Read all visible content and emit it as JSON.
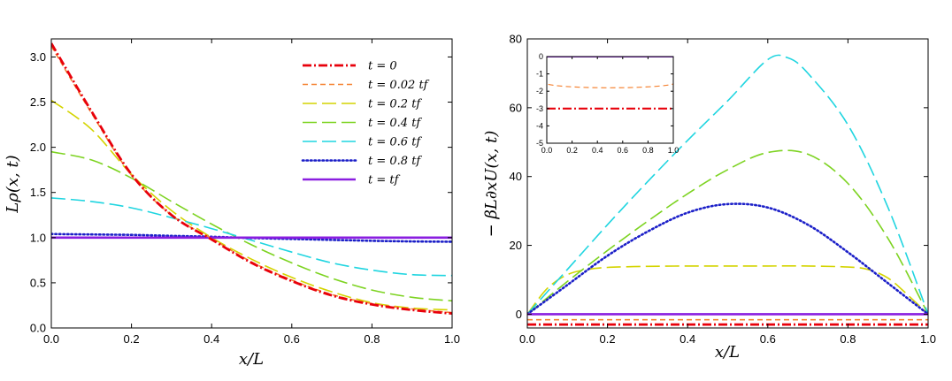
{
  "chart_data": [
    {
      "type": "line",
      "xlabel": "x/L",
      "ylabel": "Lρ(x, t)",
      "xlim": [
        0,
        1.0
      ],
      "ylim": [
        0,
        3.2
      ],
      "xticks": [
        "0.0",
        "0.2",
        "0.4",
        "0.6",
        "0.8",
        "1.0"
      ],
      "yticks": [
        "0.0",
        "0.5",
        "1.0",
        "1.5",
        "2.0",
        "2.5",
        "3.0"
      ],
      "legend_position": "top-right",
      "series": [
        {
          "name": "t = 0",
          "color": "#e8000b",
          "dash": "dashdot",
          "x": [
            0,
            0.1,
            0.2,
            0.3,
            0.4,
            0.5,
            0.6,
            0.7,
            0.8,
            0.9,
            1.0
          ],
          "y": [
            3.15,
            2.4,
            1.7,
            1.25,
            0.98,
            0.72,
            0.52,
            0.36,
            0.26,
            0.2,
            0.16
          ]
        },
        {
          "name": "t = 0.02 tf",
          "color": "#f58231",
          "dash": "dashed",
          "x": [
            0,
            0.1,
            0.2,
            0.3,
            0.4,
            0.5,
            0.6,
            0.7,
            0.8,
            0.9,
            1.0
          ],
          "y": [
            3.12,
            2.38,
            1.69,
            1.25,
            0.99,
            0.73,
            0.53,
            0.37,
            0.27,
            0.21,
            0.17
          ]
        },
        {
          "name": "t = 0.2 tf",
          "color": "#d4d400",
          "dash": "longdash",
          "x": [
            0,
            0.1,
            0.2,
            0.3,
            0.4,
            0.5,
            0.6,
            0.7,
            0.8,
            0.9,
            1.0
          ],
          "y": [
            2.52,
            2.2,
            1.7,
            1.3,
            1.0,
            0.76,
            0.56,
            0.4,
            0.28,
            0.22,
            0.2
          ]
        },
        {
          "name": "t = 0.4 tf",
          "color": "#7dd321",
          "dash": "longdash",
          "x": [
            0,
            0.1,
            0.2,
            0.3,
            0.4,
            0.5,
            0.6,
            0.7,
            0.8,
            0.9,
            1.0
          ],
          "y": [
            1.95,
            1.86,
            1.66,
            1.4,
            1.15,
            0.92,
            0.72,
            0.55,
            0.42,
            0.34,
            0.3
          ]
        },
        {
          "name": "t = 0.6 tf",
          "color": "#1fd5e0",
          "dash": "longdash",
          "x": [
            0,
            0.1,
            0.2,
            0.3,
            0.4,
            0.5,
            0.6,
            0.7,
            0.8,
            0.9,
            1.0
          ],
          "y": [
            1.44,
            1.4,
            1.33,
            1.22,
            1.1,
            0.97,
            0.84,
            0.72,
            0.64,
            0.59,
            0.58
          ]
        },
        {
          "name": "t = 0.8 tf",
          "color": "#1b1fc8",
          "dash": "dotted",
          "x": [
            0,
            0.1,
            0.2,
            0.3,
            0.4,
            0.5,
            0.6,
            0.7,
            0.8,
            0.9,
            1.0
          ],
          "y": [
            1.04,
            1.035,
            1.03,
            1.02,
            1.01,
            0.995,
            0.985,
            0.975,
            0.965,
            0.958,
            0.955
          ]
        },
        {
          "name": "t = tf",
          "color": "#8a1ee0",
          "dash": "solid",
          "x": [
            0,
            1.0
          ],
          "y": [
            1.0,
            1.0
          ]
        }
      ]
    },
    {
      "type": "line",
      "xlabel": "x/L",
      "ylabel": "− βL∂xU(x, t)",
      "xlim": [
        0,
        1.0
      ],
      "ylim": [
        -4,
        80
      ],
      "xticks": [
        "0.0",
        "0.2",
        "0.4",
        "0.6",
        "0.8",
        "1.0"
      ],
      "yticks": [
        "0",
        "20",
        "40",
        "60",
        "80"
      ],
      "series": [
        {
          "name": "t = 0",
          "color": "#e8000b",
          "dash": "dashdot",
          "x": [
            0,
            1.0
          ],
          "y": [
            -3.0,
            -3.0
          ]
        },
        {
          "name": "t = 0.02 tf",
          "color": "#f58231",
          "dash": "dashed",
          "x": [
            0,
            1.0
          ],
          "y": [
            -1.6,
            -1.6
          ]
        },
        {
          "name": "t = 0.2 tf",
          "color": "#d4d400",
          "dash": "longdash",
          "x": [
            0,
            0.05,
            0.1,
            0.15,
            0.2,
            0.3,
            0.4,
            0.5,
            0.6,
            0.7,
            0.8,
            0.85,
            0.9,
            0.95,
            1.0
          ],
          "y": [
            0,
            7.5,
            11.5,
            13.0,
            13.6,
            13.9,
            14.0,
            14.0,
            14.0,
            14.0,
            13.7,
            13.0,
            10.5,
            5.5,
            0
          ]
        },
        {
          "name": "t = 0.4 tf",
          "color": "#7dd321",
          "dash": "longdash",
          "x": [
            0,
            0.1,
            0.2,
            0.3,
            0.4,
            0.5,
            0.6,
            0.7,
            0.8,
            0.9,
            1.0
          ],
          "y": [
            0,
            9.5,
            18.5,
            27.0,
            35.0,
            42.0,
            47.0,
            46.5,
            38.0,
            22.0,
            0
          ]
        },
        {
          "name": "t = 0.6 tf",
          "color": "#1fd5e0",
          "dash": "longdash",
          "x": [
            0,
            0.1,
            0.2,
            0.3,
            0.4,
            0.5,
            0.6,
            0.65,
            0.7,
            0.8,
            0.9,
            1.0
          ],
          "y": [
            0,
            13.0,
            26.0,
            38.5,
            50.5,
            62.0,
            74.0,
            74.5,
            70.0,
            55.0,
            31.0,
            0
          ]
        },
        {
          "name": "t = 0.8 tf",
          "color": "#1b1fc8",
          "dash": "dotted",
          "x": [
            0,
            0.1,
            0.2,
            0.3,
            0.4,
            0.5,
            0.6,
            0.7,
            0.8,
            0.9,
            1.0
          ],
          "y": [
            0,
            8.5,
            17.0,
            24.0,
            29.5,
            32.0,
            31.0,
            26.0,
            18.0,
            9.0,
            0
          ]
        },
        {
          "name": "t = tf",
          "color": "#8a1ee0",
          "dash": "solid",
          "x": [
            0,
            1.0
          ],
          "y": [
            0,
            0
          ]
        }
      ],
      "inset": {
        "xlim": [
          0,
          1.0
        ],
        "ylim": [
          -5,
          0
        ],
        "xticks": [
          "0.0",
          "0.2",
          "0.4",
          "0.6",
          "0.8",
          "1.0"
        ],
        "yticks": [
          "0",
          "-1",
          "-2",
          "-3",
          "-4",
          "-5"
        ],
        "series": [
          {
            "name": "t = 0",
            "color": "#e8000b",
            "dash": "dashdot",
            "x": [
              0,
              1.0
            ],
            "y": [
              -3.0,
              -3.0
            ]
          },
          {
            "name": "t = 0.02 tf",
            "color": "#f58231",
            "dash": "dashed",
            "x": [
              0,
              0.01,
              0.99,
              1.0
            ],
            "y": [
              0,
              -1.6,
              -1.6,
              0
            ]
          },
          {
            "name": "t = tf",
            "color": "#8a1ee0",
            "dash": "solid",
            "x": [
              0,
              1.0
            ],
            "y": [
              0,
              0
            ]
          }
        ]
      }
    }
  ]
}
